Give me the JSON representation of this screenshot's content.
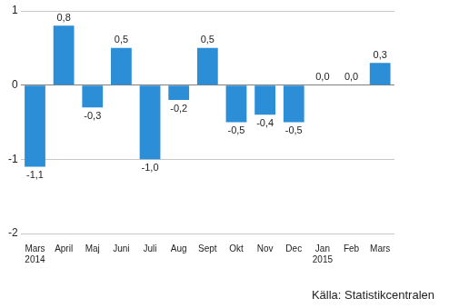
{
  "chart_data": {
    "type": "bar",
    "categories": [
      [
        "Mars",
        "2014"
      ],
      "April",
      "Maj",
      "Juni",
      "Juli",
      "Aug",
      "Sept",
      "Okt",
      "Nov",
      "Dec",
      [
        "Jan",
        "2015"
      ],
      "Feb",
      "Mars"
    ],
    "values": [
      -1.1,
      0.8,
      -0.3,
      0.5,
      -1.0,
      -0.2,
      0.5,
      -0.5,
      -0.4,
      -0.5,
      0.0,
      0.0,
      0.3
    ],
    "value_labels": [
      "-1,1",
      "0,8",
      "-0,3",
      "0,5",
      "-1,0",
      "-0,2",
      "0,5",
      "-0,5",
      "-0,4",
      "-0,5",
      "0,0",
      "0,0",
      "0,3"
    ],
    "data_labels": true,
    "color": "#2b8ed6",
    "ylim": [
      -2,
      1
    ],
    "yticks": [
      -2,
      -1,
      0,
      1
    ],
    "grid": true,
    "annotation": "Källa: Statistikcentralen"
  }
}
